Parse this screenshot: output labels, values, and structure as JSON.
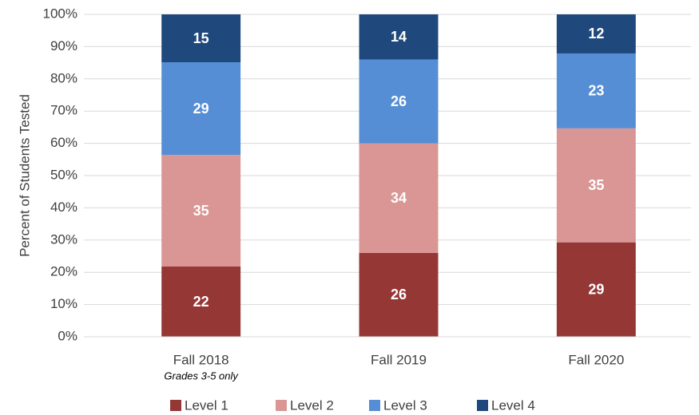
{
  "chart_data": {
    "type": "bar",
    "stacked": "percent",
    "y_axis_label": "Percent of Students Tested",
    "categories": [
      "Fall 2018",
      "Fall 2019",
      "Fall 2020"
    ],
    "annotations": [
      {
        "text": "Grades 3-5 only",
        "category": 0
      }
    ],
    "series": [
      {
        "name": "Level 1",
        "color": "#953735",
        "values": [
          22,
          26,
          29
        ]
      },
      {
        "name": "Level 2",
        "color": "#d99694",
        "values": [
          35,
          34,
          35
        ]
      },
      {
        "name": "Level 3",
        "color": "#558ed5",
        "values": [
          29,
          26,
          23
        ]
      },
      {
        "name": "Level 4",
        "color": "#1f497d",
        "values": [
          15,
          14,
          12
        ]
      }
    ],
    "ylim": [
      0,
      100
    ],
    "yticks": [
      {
        "value": 0,
        "label": "0%"
      },
      {
        "value": 10,
        "label": "10%"
      },
      {
        "value": 20,
        "label": "20%"
      },
      {
        "value": 30,
        "label": "30%"
      },
      {
        "value": 40,
        "label": "40%"
      },
      {
        "value": 50,
        "label": "50%"
      },
      {
        "value": 60,
        "label": "60%"
      },
      {
        "value": 70,
        "label": "70%"
      },
      {
        "value": 80,
        "label": "80%"
      },
      {
        "value": 90,
        "label": "90%"
      },
      {
        "value": 100,
        "label": "100%"
      }
    ],
    "grid": true,
    "legend": "bottom"
  }
}
